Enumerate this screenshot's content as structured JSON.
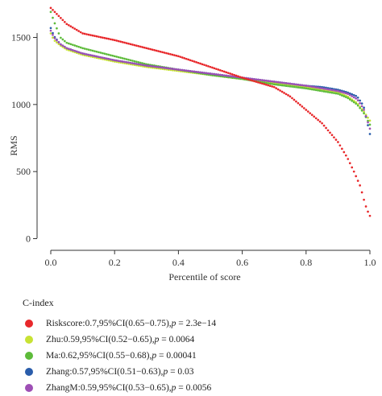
{
  "chart_data": {
    "type": "scatter",
    "xlabel": "Percentile of score",
    "ylabel": "RMS",
    "xlim": [
      0,
      1.0
    ],
    "ylim": [
      -60,
      1720
    ],
    "xticks": [
      0.0,
      0.2,
      0.4,
      0.6,
      0.8,
      1.0
    ],
    "xtick_labels": [
      "0.0",
      "0.2",
      "0.4",
      "0.6",
      "0.8",
      "1.0"
    ],
    "yticks": [
      0,
      500,
      1000,
      1500
    ],
    "ytick_labels": [
      "0",
      "500",
      "1000",
      "1500"
    ],
    "grid": false,
    "legend_title": "C-index",
    "legend_placement": "below",
    "series": [
      {
        "name": "Riskscore",
        "color": "#e8282b",
        "stat": "0.7,95%CI(0.65−0.75),",
        "p": "2.3e−14",
        "x": [
          0,
          0.05,
          0.1,
          0.2,
          0.3,
          0.4,
          0.5,
          0.6,
          0.7,
          0.75,
          0.8,
          0.85,
          0.9,
          0.93,
          0.95,
          0.97,
          0.98,
          0.99,
          1.0
        ],
        "y": [
          1720,
          1600,
          1530,
          1480,
          1420,
          1360,
          1280,
          1200,
          1130,
          1060,
          960,
          860,
          720,
          600,
          500,
          390,
          300,
          220,
          170
        ]
      },
      {
        "name": "Zhu",
        "color": "#c8e234",
        "stat": "0.59,95%CI(0.52−0.65),",
        "p": "0.0064",
        "x": [
          0,
          0.01,
          0.03,
          0.05,
          0.1,
          0.2,
          0.3,
          0.4,
          0.5,
          0.6,
          0.7,
          0.8,
          0.85,
          0.9,
          0.93,
          0.96,
          0.98,
          1.0
        ],
        "y": [
          1530,
          1480,
          1440,
          1410,
          1370,
          1320,
          1280,
          1250,
          1220,
          1190,
          1160,
          1130,
          1110,
          1090,
          1060,
          1010,
          950,
          880
        ]
      },
      {
        "name": "Ma",
        "color": "#5dbb3a",
        "stat": "0.62,95%CI(0.55−0.68),",
        "p": "0.00041",
        "x": [
          0,
          0.01,
          0.03,
          0.05,
          0.1,
          0.2,
          0.3,
          0.4,
          0.5,
          0.6,
          0.7,
          0.8,
          0.85,
          0.9,
          0.93,
          0.96,
          0.98,
          1.0
        ],
        "y": [
          1690,
          1620,
          1500,
          1460,
          1420,
          1360,
          1300,
          1260,
          1220,
          1190,
          1150,
          1120,
          1100,
          1080,
          1050,
          1000,
          940,
          850
        ]
      },
      {
        "name": "Zhang",
        "color": "#2a5dab",
        "stat": "0.57,95%CI(0.51−0.63),",
        "p": "0.03",
        "x": [
          0,
          0.01,
          0.03,
          0.05,
          0.1,
          0.2,
          0.3,
          0.4,
          0.5,
          0.6,
          0.7,
          0.8,
          0.85,
          0.9,
          0.93,
          0.96,
          0.98,
          1.0
        ],
        "y": [
          1570,
          1510,
          1450,
          1420,
          1380,
          1330,
          1290,
          1260,
          1230,
          1200,
          1170,
          1140,
          1130,
          1110,
          1090,
          1060,
          990,
          780
        ]
      },
      {
        "name": "ZhangM",
        "color": "#9e4fb5",
        "stat": "0.59,95%CI(0.53−0.65),",
        "p": "0.0056",
        "x": [
          0,
          0.01,
          0.03,
          0.05,
          0.1,
          0.2,
          0.3,
          0.4,
          0.5,
          0.6,
          0.7,
          0.8,
          0.85,
          0.9,
          0.93,
          0.96,
          0.98,
          1.0
        ],
        "y": [
          1550,
          1500,
          1450,
          1420,
          1380,
          1330,
          1290,
          1260,
          1230,
          1200,
          1170,
          1140,
          1120,
          1100,
          1080,
          1040,
          970,
          820
        ]
      }
    ]
  }
}
